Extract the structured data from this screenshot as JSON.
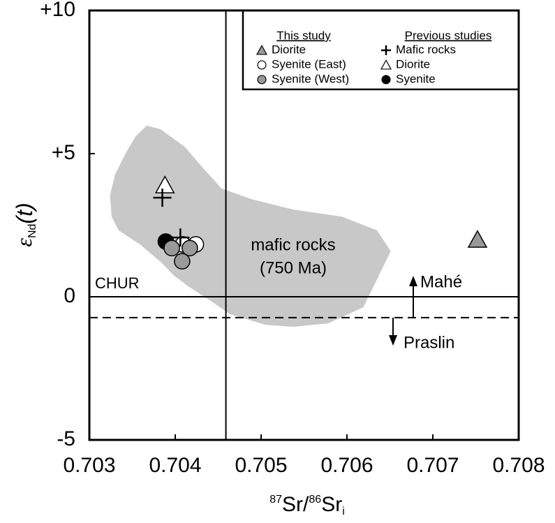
{
  "chart_data": {
    "type": "scatter",
    "x_label": {
      "sup1": "87",
      "main1": "Sr/",
      "sup2": "86",
      "main2": "Sr",
      "sub": "i"
    },
    "y_label": {
      "main": "ε",
      "sub": "Nd",
      "paren": "(t)"
    },
    "xlim": [
      0.703,
      0.708
    ],
    "xticks": [
      0.703,
      0.704,
      0.705,
      0.706,
      0.707,
      0.708
    ],
    "ylim": [
      -5,
      10
    ],
    "yticks": [
      {
        "value": 10,
        "label": "+10"
      },
      {
        "value": 5,
        "label": "+5"
      },
      0,
      -5
    ],
    "legend_titles": [
      "This study",
      "Previous studies"
    ],
    "series": [
      {
        "name": "Diorite",
        "marker": "triangle",
        "color": "#999999",
        "x": [
          0.70752
        ],
        "values": [
          2.0
        ]
      },
      {
        "name": "Syenite (East)",
        "marker": "circle",
        "color": "#ffffff",
        "x": [
          0.70409,
          0.70424
        ],
        "values": [
          1.83,
          1.83
        ]
      },
      {
        "name": "Syenite (West)",
        "marker": "circle",
        "color": "#999999",
        "x": [
          0.70396,
          0.70417,
          0.70408
        ],
        "values": [
          1.7,
          1.7,
          1.24
        ]
      },
      {
        "name": "Mafic rocks",
        "marker": "plus",
        "color": "#000000",
        "x": [
          0.70385,
          0.70406
        ],
        "values": [
          3.46,
          2.07
        ]
      },
      {
        "name": "Diorite",
        "marker": "triangle",
        "color": "#ffffff",
        "x": [
          0.70388
        ],
        "values": [
          3.9
        ]
      },
      {
        "name": "Syenite",
        "marker": "circle",
        "color": "#000000",
        "x": [
          0.70389
        ],
        "values": [
          1.93
        ]
      }
    ],
    "field": {
      "label": "mafic rocks",
      "sublabel": "(750 Ma)",
      "color": "#c8c8c8",
      "x": [
        0.70367,
        0.70383,
        0.70411,
        0.70432,
        0.70454,
        0.70489,
        0.70537,
        0.70594,
        0.70635,
        0.70651,
        0.70635,
        0.70619,
        0.70578,
        0.70537,
        0.70505,
        0.70464,
        0.7044,
        0.70415,
        0.70399,
        0.70383,
        0.70359,
        0.70334,
        0.70326,
        0.70324,
        0.7033,
        0.70342,
        0.70354
      ],
      "values": [
        5.98,
        5.85,
        5.24,
        4.51,
        3.78,
        3.41,
        3.05,
        2.8,
        2.32,
        1.59,
        0.61,
        -0.37,
        -0.93,
        -1.05,
        -0.98,
        -0.61,
        -0.12,
        0.37,
        0.73,
        1.22,
        1.83,
        2.32,
        2.8,
        3.54,
        4.27,
        5.0,
        5.61
      ]
    },
    "reference_lines": {
      "chur": {
        "label": "CHUR",
        "y": 0
      },
      "vertical_x": 0.70459,
      "dashed_y": -0.73
    },
    "annotations": {
      "up": "Mahé",
      "down": "Praslin"
    }
  }
}
